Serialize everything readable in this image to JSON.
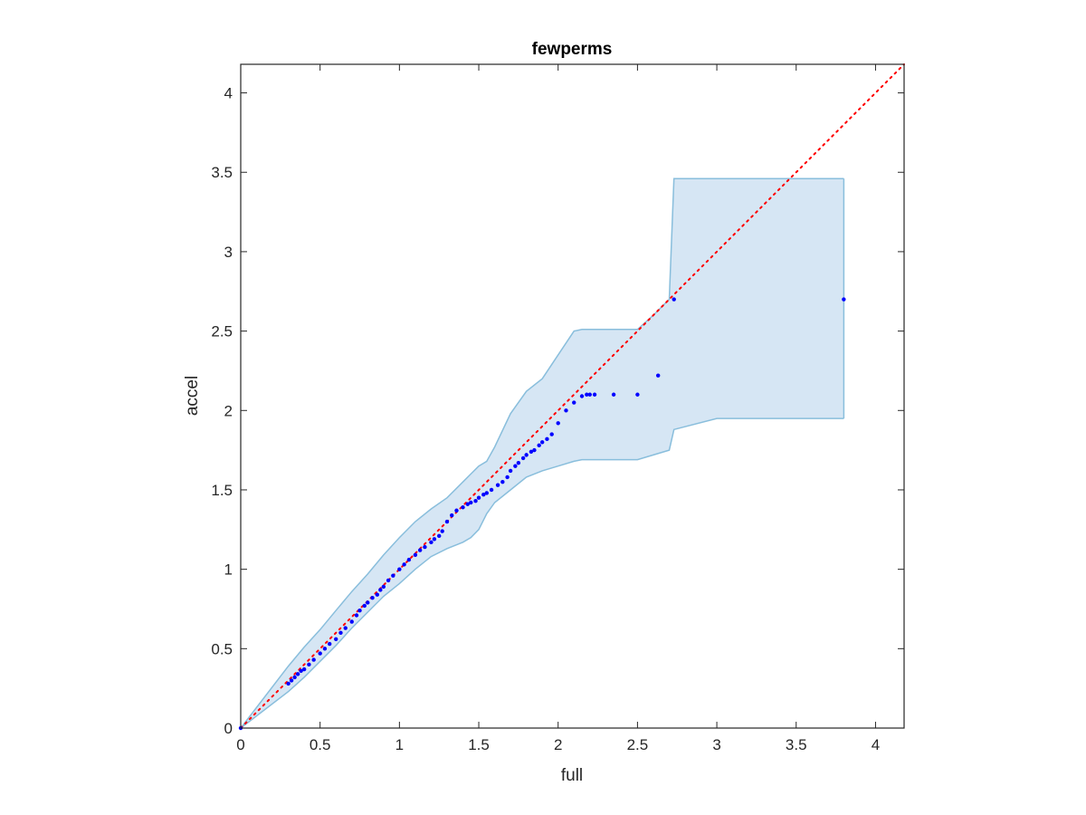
{
  "chart_data": {
    "type": "scatter",
    "title": "fewperms",
    "xlabel": "full",
    "ylabel": "accel",
    "xlim": [
      0,
      4.18
    ],
    "ylim": [
      0,
      4.18
    ],
    "xticks": [
      "0",
      "0.5",
      "1",
      "1.5",
      "2",
      "2.5",
      "3",
      "3.5",
      "4"
    ],
    "yticks": [
      "0",
      "0.5",
      "1",
      "1.5",
      "2",
      "2.5",
      "3",
      "3.5",
      "4"
    ],
    "grid": false,
    "box": true,
    "reference_line": {
      "style": "dotted",
      "color": "#ff0000",
      "from": [
        0,
        0
      ],
      "to": [
        4.18,
        4.18
      ]
    },
    "band": {
      "color": "#d6e6f4",
      "edge_color": "#89bedc",
      "x": [
        0,
        0.3,
        0.4,
        0.5,
        0.6,
        0.7,
        0.8,
        0.9,
        1.0,
        1.1,
        1.2,
        1.3,
        1.4,
        1.45,
        1.5,
        1.55,
        1.6,
        1.7,
        1.8,
        1.9,
        2.0,
        2.1,
        2.15,
        2.2,
        2.4,
        2.5,
        2.6,
        2.7,
        2.73,
        3.0,
        3.5,
        3.8
      ],
      "upper": [
        0,
        0.39,
        0.51,
        0.62,
        0.74,
        0.86,
        0.97,
        1.09,
        1.2,
        1.3,
        1.38,
        1.45,
        1.55,
        1.6,
        1.65,
        1.68,
        1.77,
        1.98,
        2.12,
        2.2,
        2.35,
        2.5,
        2.51,
        2.51,
        2.51,
        2.51,
        2.6,
        2.7,
        3.46,
        3.46,
        3.46,
        3.46
      ],
      "lower": [
        0,
        0.23,
        0.32,
        0.42,
        0.52,
        0.63,
        0.73,
        0.83,
        0.91,
        1.0,
        1.08,
        1.13,
        1.17,
        1.2,
        1.25,
        1.35,
        1.42,
        1.5,
        1.58,
        1.62,
        1.65,
        1.68,
        1.69,
        1.69,
        1.69,
        1.69,
        1.72,
        1.75,
        1.88,
        1.95,
        1.95,
        1.95
      ]
    },
    "points": {
      "color": "#0000ff",
      "x": [
        0,
        0.3,
        0.32,
        0.34,
        0.36,
        0.38,
        0.4,
        0.43,
        0.46,
        0.5,
        0.53,
        0.56,
        0.6,
        0.63,
        0.66,
        0.7,
        0.73,
        0.75,
        0.78,
        0.8,
        0.83,
        0.86,
        0.88,
        0.9,
        0.93,
        0.96,
        1.0,
        1.03,
        1.06,
        1.1,
        1.13,
        1.16,
        1.2,
        1.22,
        1.25,
        1.27,
        1.3,
        1.33,
        1.36,
        1.4,
        1.43,
        1.45,
        1.48,
        1.5,
        1.53,
        1.55,
        1.58,
        1.62,
        1.65,
        1.68,
        1.7,
        1.73,
        1.75,
        1.78,
        1.8,
        1.83,
        1.85,
        1.88,
        1.9,
        1.93,
        1.96,
        2.0,
        2.05,
        2.1,
        2.15,
        2.18,
        2.2,
        2.23,
        2.35,
        2.5,
        2.63,
        2.73,
        3.8
      ],
      "y": [
        0,
        0.28,
        0.3,
        0.32,
        0.34,
        0.36,
        0.37,
        0.4,
        0.43,
        0.47,
        0.5,
        0.53,
        0.56,
        0.6,
        0.63,
        0.67,
        0.71,
        0.74,
        0.77,
        0.79,
        0.82,
        0.84,
        0.87,
        0.89,
        0.93,
        0.96,
        1.0,
        1.03,
        1.06,
        1.09,
        1.12,
        1.14,
        1.17,
        1.19,
        1.21,
        1.24,
        1.3,
        1.34,
        1.37,
        1.39,
        1.41,
        1.42,
        1.43,
        1.45,
        1.47,
        1.48,
        1.5,
        1.53,
        1.55,
        1.58,
        1.62,
        1.65,
        1.67,
        1.7,
        1.72,
        1.74,
        1.75,
        1.78,
        1.8,
        1.82,
        1.85,
        1.92,
        2.0,
        2.05,
        2.09,
        2.1,
        2.1,
        2.1,
        2.1,
        2.1,
        2.22,
        2.7,
        2.7
      ]
    }
  }
}
